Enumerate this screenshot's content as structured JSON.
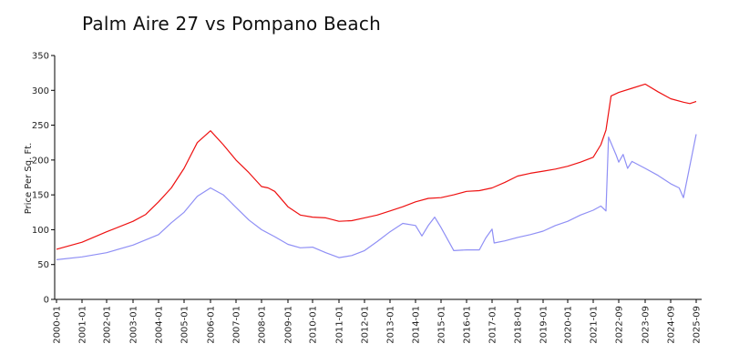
{
  "chart_data": {
    "type": "line",
    "title": "Palm Aire 27 vs Pompano Beach",
    "xlabel": "",
    "ylabel": "Price Per Sq. Ft.",
    "ylim": [
      0,
      350
    ],
    "yticks": [
      0,
      50,
      100,
      150,
      200,
      250,
      300,
      350
    ],
    "grid": false,
    "legend": "none",
    "xtick_labels": [
      "2000-01",
      "2001-01",
      "2002-01",
      "2003-01",
      "2004-01",
      "2005-01",
      "2006-01",
      "2007-01",
      "2008-01",
      "2009-01",
      "2010-01",
      "2011-01",
      "2012-01",
      "2013-01",
      "2014-01",
      "2015-01",
      "2016-01",
      "2017-01",
      "2018-01",
      "2019-01",
      "2020-01",
      "2021-01",
      "2022-09",
      "2023-09",
      "2024-09",
      "2025-09"
    ],
    "series": [
      {
        "color": "#ee1111",
        "points": [
          [
            "2000-01",
            72
          ],
          [
            "2001-01",
            82
          ],
          [
            "2002-01",
            97
          ],
          [
            "2003-01",
            112
          ],
          [
            "2003-07",
            122
          ],
          [
            "2004-01",
            140
          ],
          [
            "2004-07",
            160
          ],
          [
            "2005-01",
            188
          ],
          [
            "2005-07",
            225
          ],
          [
            "2006-01",
            242
          ],
          [
            "2006-07",
            222
          ],
          [
            "2007-01",
            200
          ],
          [
            "2007-07",
            182
          ],
          [
            "2008-01",
            162
          ],
          [
            "2008-04",
            160
          ],
          [
            "2008-07",
            155
          ],
          [
            "2009-01",
            133
          ],
          [
            "2009-07",
            121
          ],
          [
            "2010-01",
            118
          ],
          [
            "2010-07",
            117
          ],
          [
            "2011-01",
            112
          ],
          [
            "2011-07",
            113
          ],
          [
            "2012-01",
            117
          ],
          [
            "2012-07",
            121
          ],
          [
            "2013-01",
            127
          ],
          [
            "2013-07",
            133
          ],
          [
            "2014-01",
            140
          ],
          [
            "2014-07",
            145
          ],
          [
            "2015-01",
            146
          ],
          [
            "2015-07",
            150
          ],
          [
            "2016-01",
            155
          ],
          [
            "2016-07",
            156
          ],
          [
            "2017-01",
            160
          ],
          [
            "2017-07",
            168
          ],
          [
            "2018-01",
            177
          ],
          [
            "2018-07",
            181
          ],
          [
            "2019-01",
            184
          ],
          [
            "2019-07",
            187
          ],
          [
            "2020-01",
            191
          ],
          [
            "2020-07",
            197
          ],
          [
            "2021-01",
            204
          ],
          [
            "2021-07",
            222
          ],
          [
            "2021-11",
            243
          ],
          [
            "2022-03",
            292
          ],
          [
            "2022-09",
            297
          ],
          [
            "2023-03",
            303
          ],
          [
            "2023-09",
            309
          ],
          [
            "2024-03",
            298
          ],
          [
            "2024-09",
            288
          ],
          [
            "2025-03",
            283
          ],
          [
            "2025-06",
            281
          ],
          [
            "2025-09",
            284
          ]
        ]
      },
      {
        "color": "#8f8ff5",
        "points": [
          [
            "2000-01",
            57
          ],
          [
            "2001-01",
            61
          ],
          [
            "2002-01",
            67
          ],
          [
            "2003-01",
            78
          ],
          [
            "2004-01",
            93
          ],
          [
            "2004-07",
            110
          ],
          [
            "2005-01",
            125
          ],
          [
            "2005-07",
            148
          ],
          [
            "2006-01",
            160
          ],
          [
            "2006-07",
            150
          ],
          [
            "2007-01",
            132
          ],
          [
            "2007-07",
            114
          ],
          [
            "2008-01",
            100
          ],
          [
            "2008-07",
            90
          ],
          [
            "2009-01",
            79
          ],
          [
            "2009-07",
            74
          ],
          [
            "2010-01",
            75
          ],
          [
            "2010-07",
            67
          ],
          [
            "2011-01",
            60
          ],
          [
            "2011-07",
            63
          ],
          [
            "2012-01",
            70
          ],
          [
            "2012-07",
            83
          ],
          [
            "2013-01",
            97
          ],
          [
            "2013-07",
            109
          ],
          [
            "2014-01",
            106
          ],
          [
            "2014-04",
            91
          ],
          [
            "2014-07",
            106
          ],
          [
            "2014-10",
            118
          ],
          [
            "2015-01",
            103
          ],
          [
            "2015-07",
            70
          ],
          [
            "2016-01",
            71
          ],
          [
            "2016-07",
            71
          ],
          [
            "2016-10",
            88
          ],
          [
            "2017-01",
            101
          ],
          [
            "2017-02",
            81
          ],
          [
            "2017-07",
            84
          ],
          [
            "2018-01",
            89
          ],
          [
            "2018-07",
            93
          ],
          [
            "2019-01",
            98
          ],
          [
            "2019-07",
            106
          ],
          [
            "2020-01",
            112
          ],
          [
            "2020-07",
            121
          ],
          [
            "2021-01",
            128
          ],
          [
            "2021-07",
            134
          ],
          [
            "2021-11",
            127
          ],
          [
            "2022-01",
            233
          ],
          [
            "2022-07",
            207
          ],
          [
            "2022-09",
            197
          ],
          [
            "2022-11",
            208
          ],
          [
            "2023-01",
            188
          ],
          [
            "2023-03",
            198
          ],
          [
            "2023-09",
            188
          ],
          [
            "2024-03",
            178
          ],
          [
            "2024-09",
            166
          ],
          [
            "2025-01",
            160
          ],
          [
            "2025-03",
            146
          ],
          [
            "2025-09",
            237
          ]
        ]
      }
    ]
  }
}
